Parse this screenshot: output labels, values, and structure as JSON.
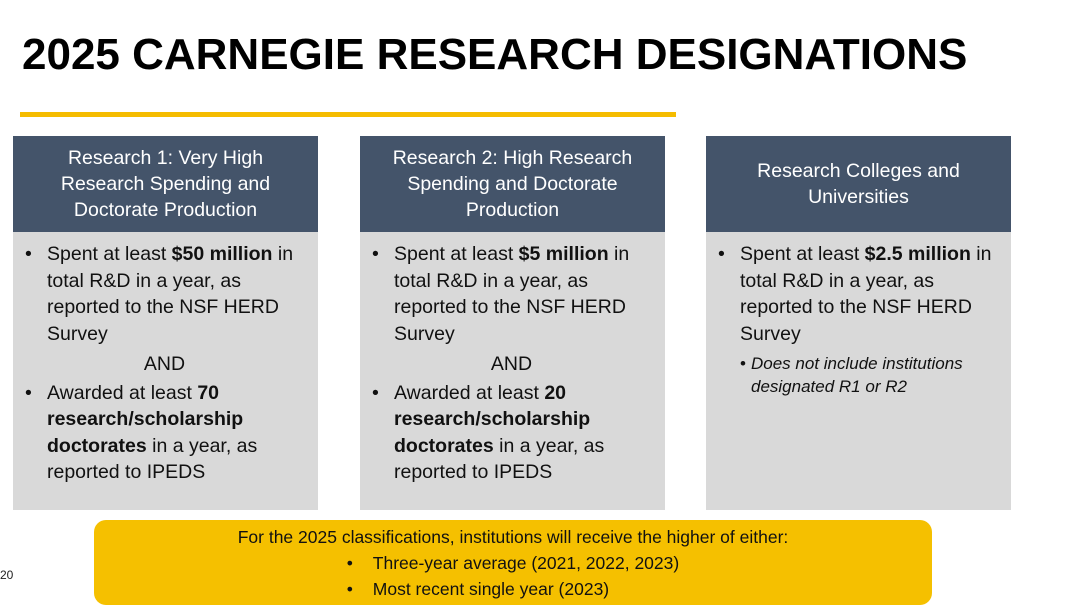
{
  "title": "2025 CARNEGIE RESEARCH DESIGNATIONS",
  "colors": {
    "accent": "#f5bc00",
    "header_bg": "#44546a",
    "body_bg": "#d9d9d9",
    "note_bg": "#f5c000"
  },
  "columns": [
    {
      "header": [
        "Research 1: Very High",
        "Research Spending and",
        "Doctorate Production"
      ],
      "b1": {
        "pre": "Spent at least ",
        "bold": "$50 million",
        "post": " in total R&D in a year, as reported to the NSF HERD Survey"
      },
      "and": "AND",
      "b2": {
        "pre": "Awarded at least ",
        "bold_num": "70",
        "bold": "research/scholarship doctorates",
        "post": " in a year, as reported to IPEDS"
      }
    },
    {
      "header": [
        "Research 2: High Research",
        "Spending and Doctorate",
        "Production"
      ],
      "b1": {
        "pre": "Spent at least ",
        "bold": "$5 million",
        "post": " in total R&D in a year, as reported to the NSF HERD Survey"
      },
      "and": "AND",
      "b2": {
        "pre": "Awarded at least ",
        "bold_num": "20",
        "bold": "research/scholarship doctorates",
        "post": " in a year, as reported to IPEDS"
      }
    },
    {
      "header": [
        "Research Colleges and",
        "Universities"
      ],
      "b1": {
        "pre": "Spent at least ",
        "bold": "$2.5 million",
        "post": " in total R&D in a year, as reported to the NSF HERD Survey"
      },
      "sub": "Does not include institutions designated R1 or R2"
    }
  ],
  "note": {
    "intro": "For the 2025 classifications, institutions will receive the higher of either:",
    "items": [
      "Three-year average (2021, 2022, 2023)",
      "Most recent single year (2023)"
    ]
  },
  "page_number": "20",
  "bullet": "•"
}
